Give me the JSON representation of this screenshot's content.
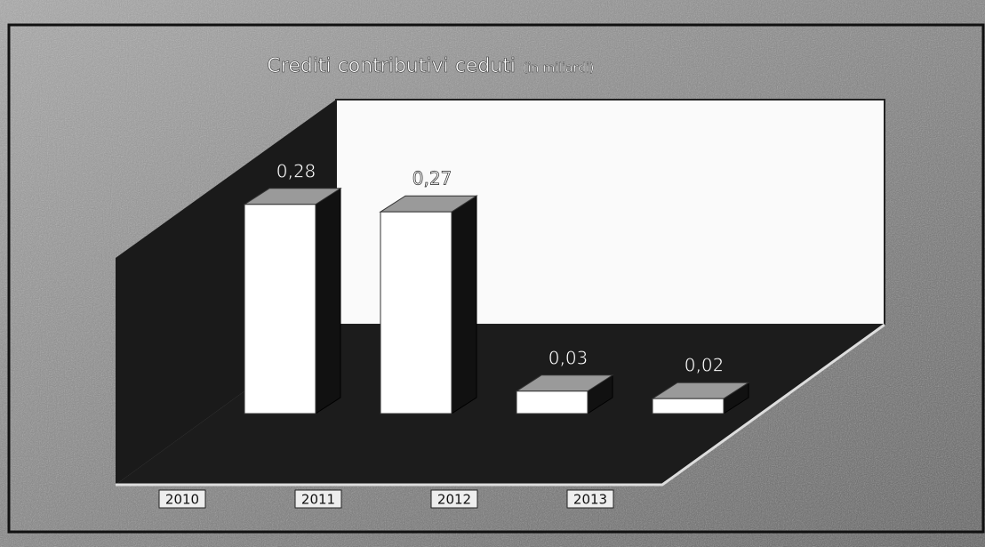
{
  "chart_data": {
    "type": "bar3d",
    "title": "Crediti contributivi ceduti",
    "subtitle": "(in miliardi)",
    "categories": [
      "2010",
      "2011",
      "2012",
      "2013"
    ],
    "values": [
      0.28,
      0.27,
      0.03,
      0.02
    ],
    "value_labels": [
      "0,28",
      "0,27",
      "0,03",
      "0,02"
    ],
    "color": "#ffffff",
    "ylim": [
      0,
      0.35
    ]
  }
}
